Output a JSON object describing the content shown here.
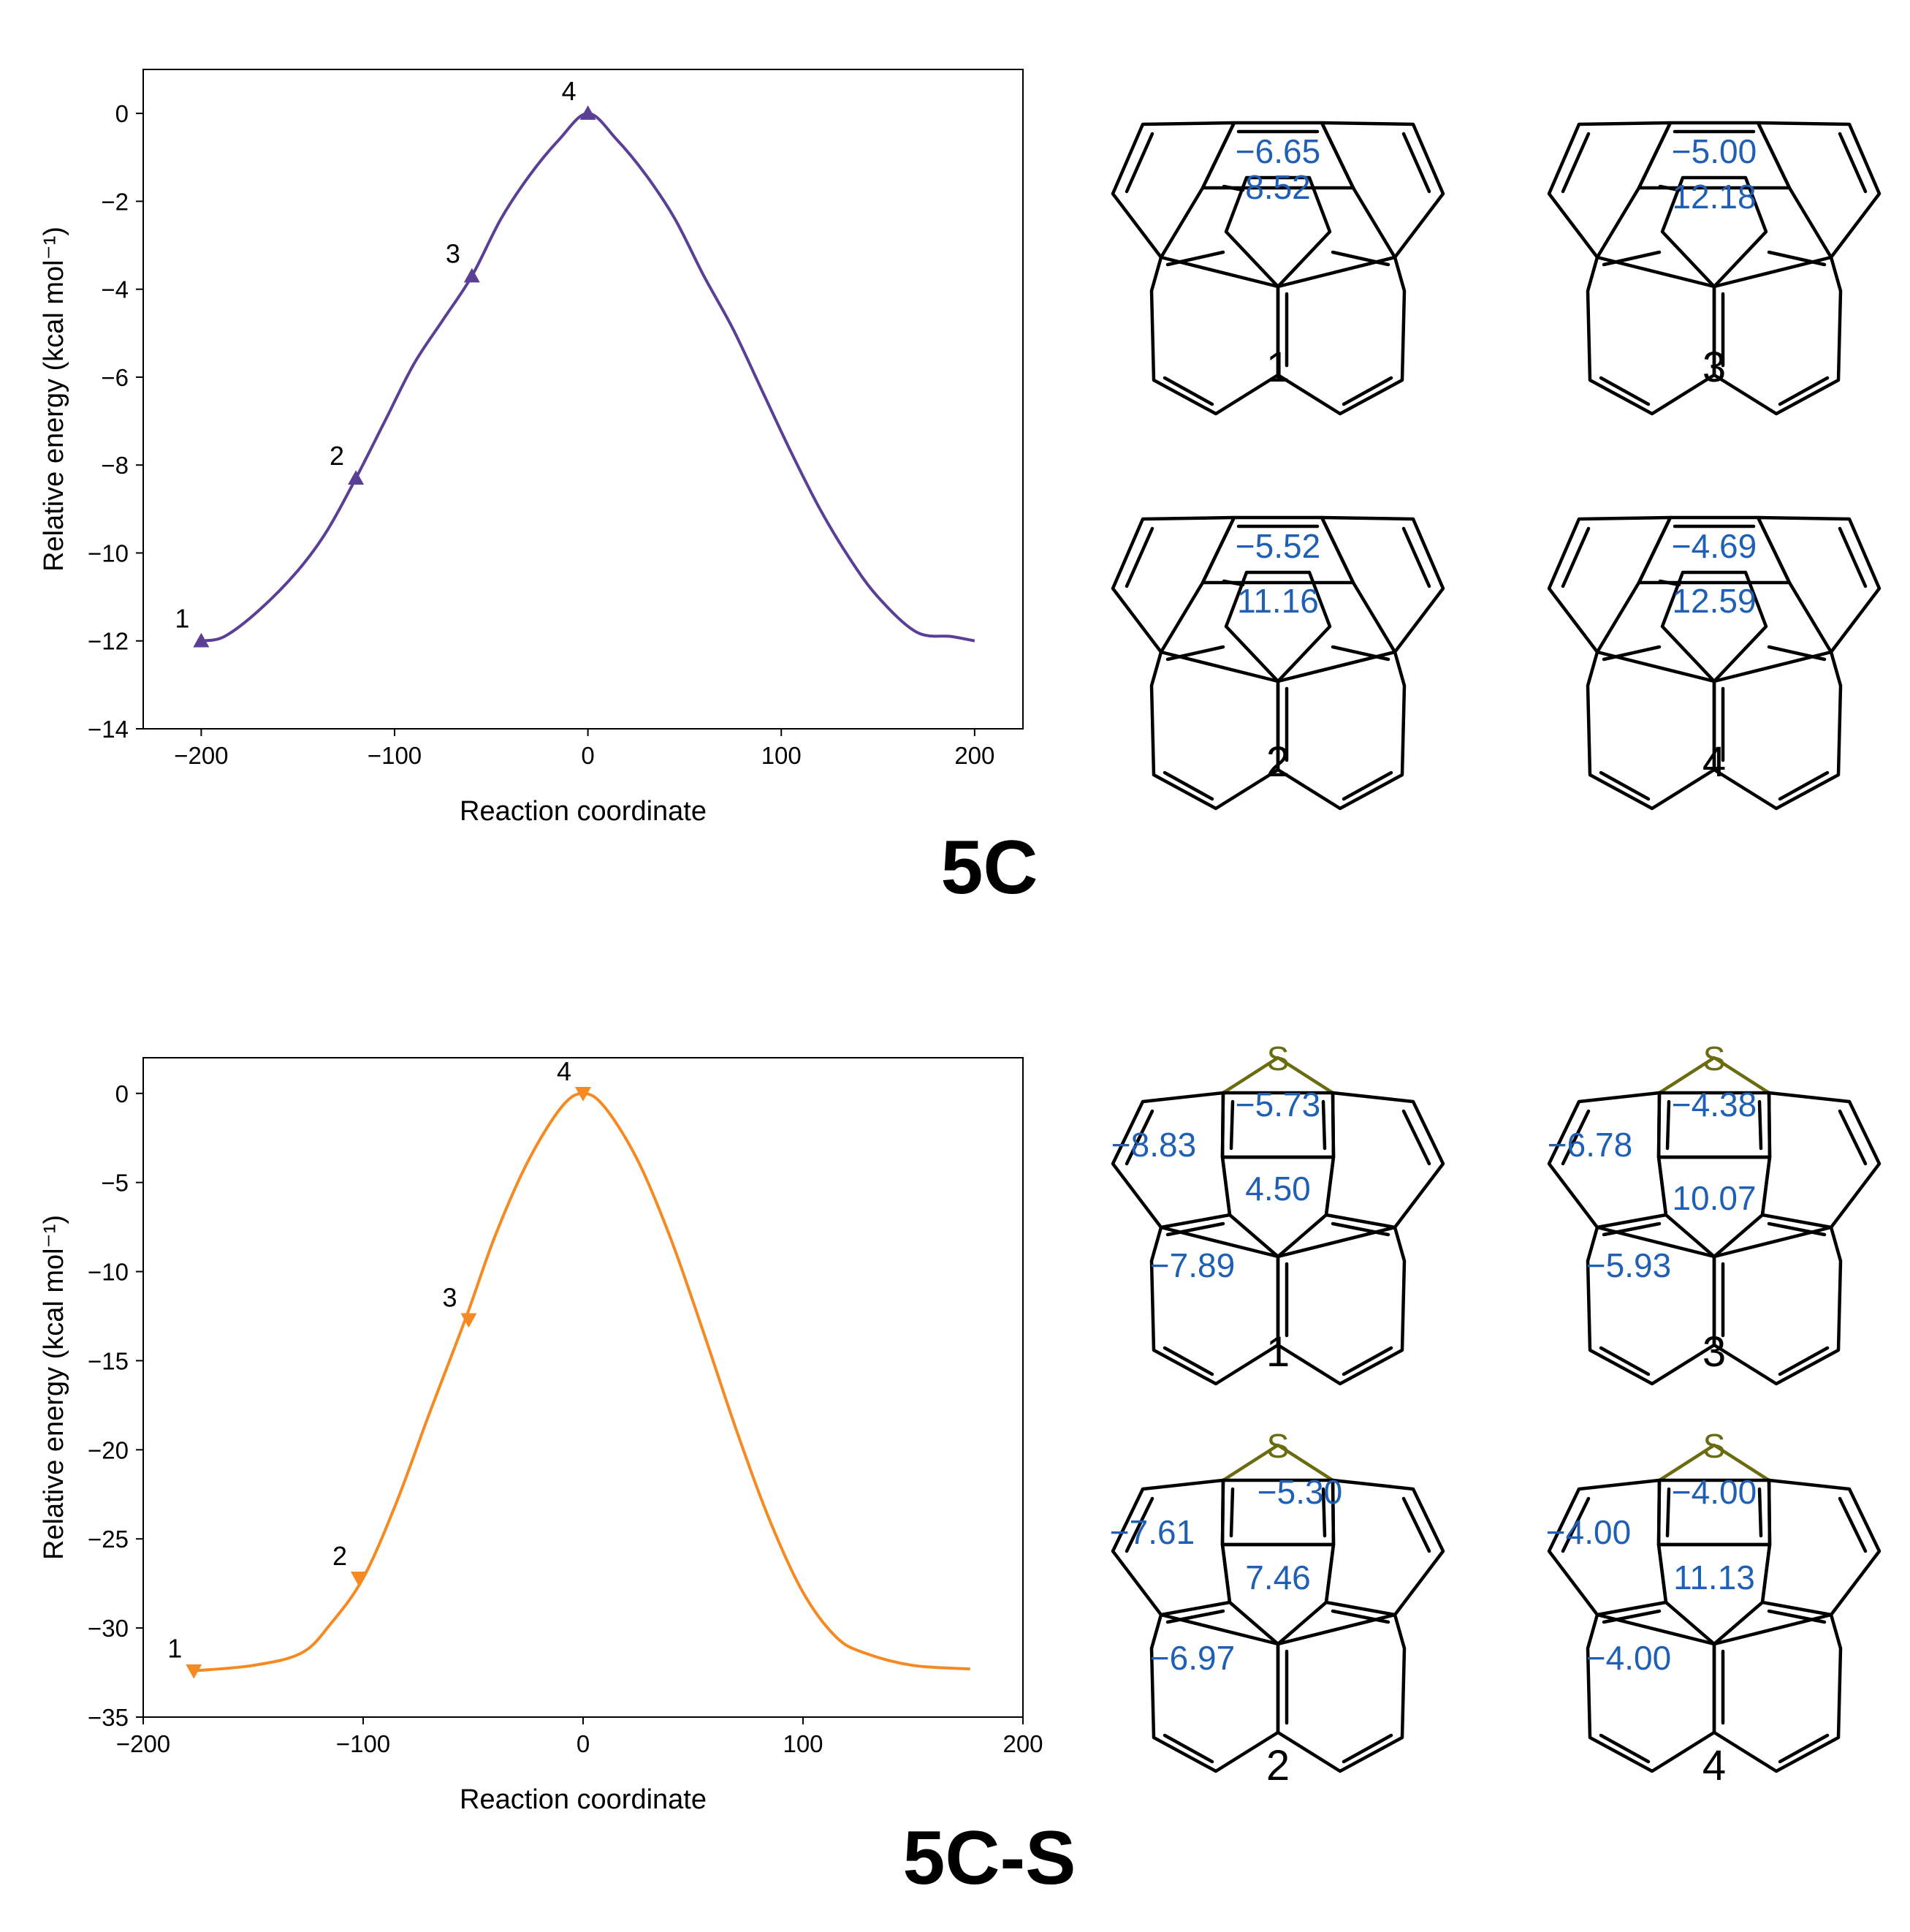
{
  "colors": {
    "series_5C": "#5b3e96",
    "series_5CS": "#f58a22",
    "nics": "#1f5fb4",
    "sulfur": "#6b6b10"
  },
  "chart_data": [
    {
      "type": "line",
      "title": "5C",
      "xlabel": "Reaction coordinate",
      "ylabel": "Relative energy (kcal mol⁻¹)",
      "xlim": [
        -230,
        225
      ],
      "ylim": [
        -14,
        1
      ],
      "xticks": [
        -200,
        -100,
        0,
        100,
        200
      ],
      "yticks": [
        0,
        -2,
        -4,
        -6,
        -8,
        -10,
        -12,
        -14
      ],
      "xtick_labels": [
        "−200",
        "−100",
        "0",
        "100",
        "200"
      ],
      "ytick_labels": [
        "0",
        "−2",
        "−4",
        "−6",
        "−8",
        "−10",
        "−12",
        "−14"
      ],
      "series": [
        {
          "name": "5C",
          "marker": "triangle-up",
          "x": [
            -200,
            -188,
            -170,
            -150,
            -135,
            -120,
            -105,
            -90,
            -75,
            -60,
            -45,
            -30,
            -15,
            0,
            15,
            30,
            45,
            60,
            75,
            90,
            105,
            120,
            135,
            150,
            170,
            188,
            200
          ],
          "y": [
            -12.0,
            -11.9,
            -11.3,
            -10.4,
            -9.5,
            -8.3,
            -7.0,
            -5.7,
            -4.7,
            -3.7,
            -2.4,
            -1.4,
            -0.6,
            0.0,
            -0.6,
            -1.4,
            -2.4,
            -3.7,
            -4.9,
            -6.3,
            -7.7,
            -9.0,
            -10.1,
            -11.0,
            -11.8,
            -11.9,
            -12.0
          ]
        }
      ],
      "points": [
        {
          "label": "1",
          "x": -200,
          "y": -12.0
        },
        {
          "label": "2",
          "x": -120,
          "y": -8.3
        },
        {
          "label": "3",
          "x": -60,
          "y": -3.7
        },
        {
          "label": "4",
          "x": 0,
          "y": 0.0
        }
      ]
    },
    {
      "type": "line",
      "title": "5C-S",
      "xlabel": "Reaction coordinate",
      "ylabel": "Relative energy (kcal mol⁻¹)",
      "xlim": [
        -200,
        200
      ],
      "ylim": [
        -35,
        2
      ],
      "xticks": [
        -200,
        -100,
        0,
        100,
        200
      ],
      "yticks": [
        0,
        -5,
        -10,
        -15,
        -20,
        -25,
        -30,
        -35
      ],
      "xtick_labels": [
        "−200",
        "−100",
        "0",
        "100",
        "200"
      ],
      "ytick_labels": [
        "0",
        "−5",
        "−10",
        "−15",
        "−20",
        "−25",
        "−30",
        "−35"
      ],
      "series": [
        {
          "name": "5C-S",
          "marker": "triangle-down",
          "x": [
            -177,
            -150,
            -128,
            -115,
            -100,
            -85,
            -70,
            -53,
            -40,
            -25,
            -10,
            0,
            10,
            25,
            40,
            55,
            70,
            85,
            100,
            115,
            128,
            150,
            176
          ],
          "y": [
            -32.4,
            -32.1,
            -31.4,
            -29.8,
            -27.2,
            -23.0,
            -18.0,
            -12.5,
            -8.0,
            -3.8,
            -0.8,
            0.0,
            -0.8,
            -3.8,
            -8.2,
            -13.5,
            -19.0,
            -24.0,
            -28.0,
            -30.5,
            -31.4,
            -32.1,
            -32.3
          ]
        }
      ],
      "points": [
        {
          "label": "1",
          "x": -177,
          "y": -32.4
        },
        {
          "label": "2",
          "x": -102,
          "y": -27.2
        },
        {
          "label": "3",
          "x": -52,
          "y": -12.7
        },
        {
          "label": "4",
          "x": 0,
          "y": 0.0
        }
      ]
    }
  ],
  "structures_5C": [
    {
      "label": "1",
      "nics_top": "−6.65",
      "nics_center": "8.52"
    },
    {
      "label": "3",
      "nics_top": "−5.00",
      "nics_center": "12.18"
    },
    {
      "label": "2",
      "nics_top": "−5.52",
      "nics_center": "11.16"
    },
    {
      "label": "4",
      "nics_top": "−4.69",
      "nics_center": "12.59"
    }
  ],
  "structures_5CS": [
    {
      "label": "1",
      "atom": "S",
      "nics_top": "−5.73",
      "nics_left": "−8.83",
      "nics_center": "4.50",
      "nics_bottom": "−7.89"
    },
    {
      "label": "3",
      "atom": "S",
      "nics_top": "−4.38",
      "nics_left": "−6.78",
      "nics_center": "10.07",
      "nics_bottom": "−5.93"
    },
    {
      "label": "2",
      "atom": "S",
      "nics_top": "−5.30",
      "nics_left": "−7.61",
      "nics_center": "7.46",
      "nics_bottom": "−6.97"
    },
    {
      "label": "4",
      "atom": "S",
      "nics_top": "−4.00",
      "nics_left": "−4.00",
      "nics_center": "11.13",
      "nics_bottom": "−4.00"
    }
  ]
}
